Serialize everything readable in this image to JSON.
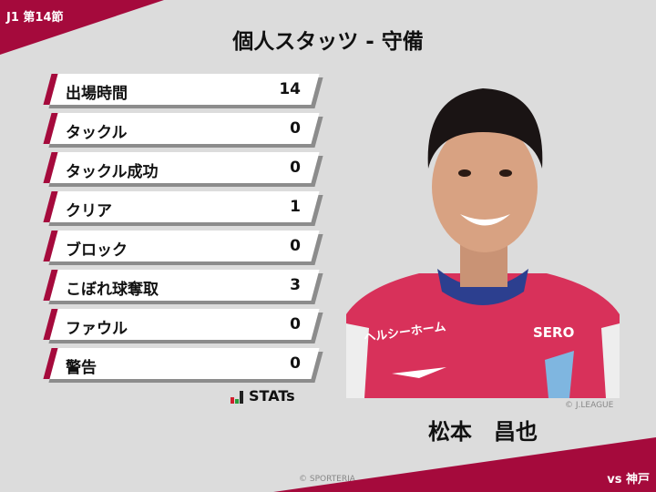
{
  "header": {
    "round": "J1 第14節",
    "title": "個人スタッツ - 守備"
  },
  "stats": [
    {
      "label": "出場時間",
      "value": "14"
    },
    {
      "label": "タックル",
      "value": "0"
    },
    {
      "label": "タックル成功",
      "value": "0"
    },
    {
      "label": "クリア",
      "value": "1"
    },
    {
      "label": "ブロック",
      "value": "0"
    },
    {
      "label": "こぼれ球奪取",
      "value": "3"
    },
    {
      "label": "ファウル",
      "value": "0"
    },
    {
      "label": "警告",
      "value": "0"
    }
  ],
  "logo": {
    "text": "STATs"
  },
  "player": {
    "name": "松本　昌也",
    "photo_credit": "© J.LEAGUE",
    "jersey_sponsor": "ヘルシーホーム",
    "jersey_logo": "SERO"
  },
  "footer": {
    "credit": "© SPORTERIA",
    "opponent": "vs 神戸"
  },
  "colors": {
    "accent": "#a50a3c",
    "background": "#dcdcdc"
  }
}
